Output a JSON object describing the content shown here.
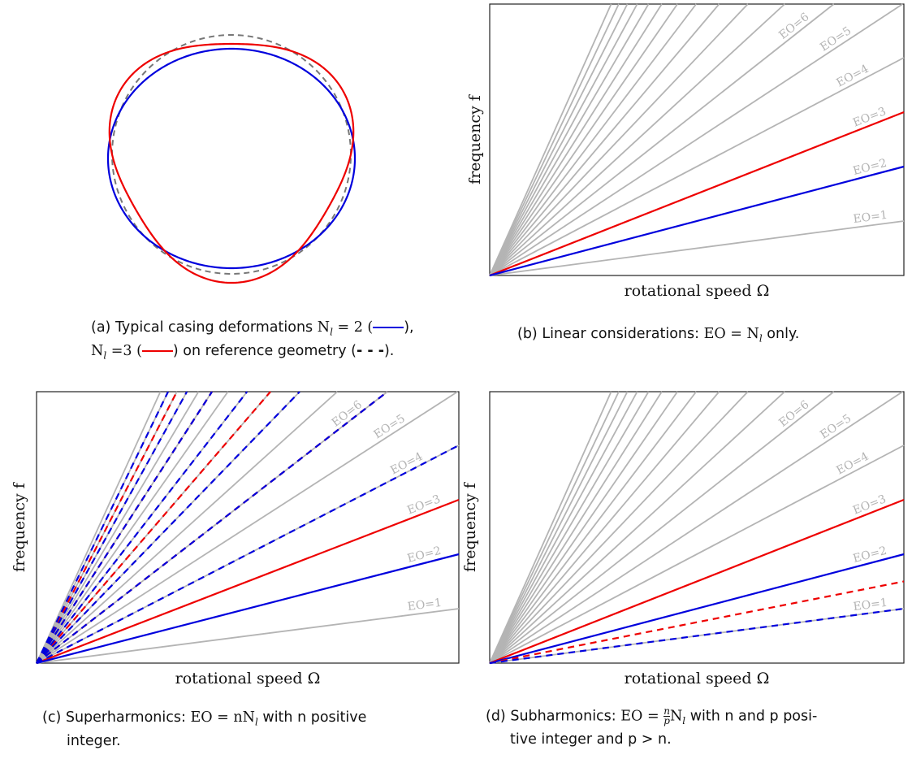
{
  "colors": {
    "blue": "#0000dd",
    "red": "#ee0000",
    "gray": "#b4b4b4",
    "dash_gray": "#777777",
    "frame": "#222222"
  },
  "panel_a": {
    "description_values": {
      "N_l_blue": 2,
      "N_l_red": 3
    },
    "caption": {
      "tag": "(a)",
      "line1_text": "Typical casing deformations",
      "nl2": "N",
      "eq2": "= 2 (",
      "close2": "),",
      "nl3": "N",
      "eq3": "=3 (",
      "mid3": ") on reference geometry (",
      "dash": "- - -",
      "close3": ")."
    }
  },
  "panel_b": {
    "xlabel": "rotational speed Ω",
    "ylabel": "frequency f",
    "eo_labels": [
      "EO=1",
      "EO=2",
      "EO=3",
      "EO=4",
      "EO=5",
      "EO=6"
    ],
    "caption": {
      "tag": "(b)",
      "text": "Linear considerations:",
      "eq": "EO = N",
      "tail": "only."
    }
  },
  "panel_c": {
    "xlabel": "rotational speed Ω",
    "ylabel": "frequency f",
    "eo_labels": [
      "EO=1",
      "EO=2",
      "EO=3",
      "EO=4",
      "EO=5",
      "EO=6"
    ],
    "caption": {
      "tag": "(c)",
      "text": "Superharmonics:",
      "eq": "EO = nN",
      "tail": "with n positive",
      "line2": "integer."
    }
  },
  "panel_d": {
    "xlabel": "rotational speed Ω",
    "ylabel": "frequency f",
    "eo_labels": [
      "EO=1",
      "EO=2",
      "EO=3",
      "EO=4",
      "EO=5",
      "EO=6"
    ],
    "caption": {
      "tag": "(d)",
      "text": "Subharmonics:",
      "eq": "EO =",
      "tail": "with n and p posi-",
      "line2": "tive integer and p > n."
    }
  },
  "chart_data": [
    {
      "type": "line",
      "panel": "b",
      "xlabel": "rotational speed Ω",
      "ylabel": "frequency f",
      "gray_slopes": [
        1,
        4,
        5,
        6,
        7,
        8,
        9,
        10,
        11,
        12,
        13,
        14,
        15,
        16,
        17
      ],
      "blue_slopes": [
        2
      ],
      "red_slopes": [
        3
      ],
      "series": [
        {
          "name": "EO=1",
          "slope": 1
        },
        {
          "name": "EO=2",
          "slope": 2
        },
        {
          "name": "EO=3",
          "slope": 3
        },
        {
          "name": "EO=4",
          "slope": 4
        },
        {
          "name": "EO=5",
          "slope": 5
        },
        {
          "name": "EO=6",
          "slope": 6
        }
      ]
    },
    {
      "type": "line",
      "panel": "c",
      "xlabel": "rotational speed Ω",
      "ylabel": "frequency f",
      "gray_slopes": [
        1,
        4,
        5,
        6,
        7,
        8,
        9,
        10,
        11,
        12,
        13,
        14,
        15,
        16,
        17
      ],
      "blue_slopes": [
        2
      ],
      "red_slopes": [
        3
      ],
      "blue_dashed_slopes": [
        4,
        6,
        8,
        10,
        12,
        14,
        16
      ],
      "red_dashed_slopes": [
        6,
        9,
        12,
        15
      ],
      "series": [
        {
          "name": "EO=1",
          "slope": 1
        },
        {
          "name": "EO=2",
          "slope": 2
        },
        {
          "name": "EO=3",
          "slope": 3
        },
        {
          "name": "EO=4",
          "slope": 4
        },
        {
          "name": "EO=5",
          "slope": 5
        },
        {
          "name": "EO=6",
          "slope": 6
        }
      ]
    },
    {
      "type": "line",
      "panel": "d",
      "xlabel": "rotational speed Ω",
      "ylabel": "frequency f",
      "gray_slopes": [
        1,
        4,
        5,
        6,
        7,
        8,
        9,
        10,
        11,
        12,
        13,
        14,
        15,
        16,
        17
      ],
      "blue_slopes": [
        2
      ],
      "red_slopes": [
        3
      ],
      "blue_dashed_slopes": [
        1
      ],
      "red_dashed_slopes": [
        1.5
      ],
      "series": [
        {
          "name": "EO=1",
          "slope": 1
        },
        {
          "name": "EO=2",
          "slope": 2
        },
        {
          "name": "EO=3",
          "slope": 3
        },
        {
          "name": "EO=4",
          "slope": 4
        },
        {
          "name": "EO=5",
          "slope": 5
        },
        {
          "name": "EO=6",
          "slope": 6
        }
      ]
    }
  ]
}
